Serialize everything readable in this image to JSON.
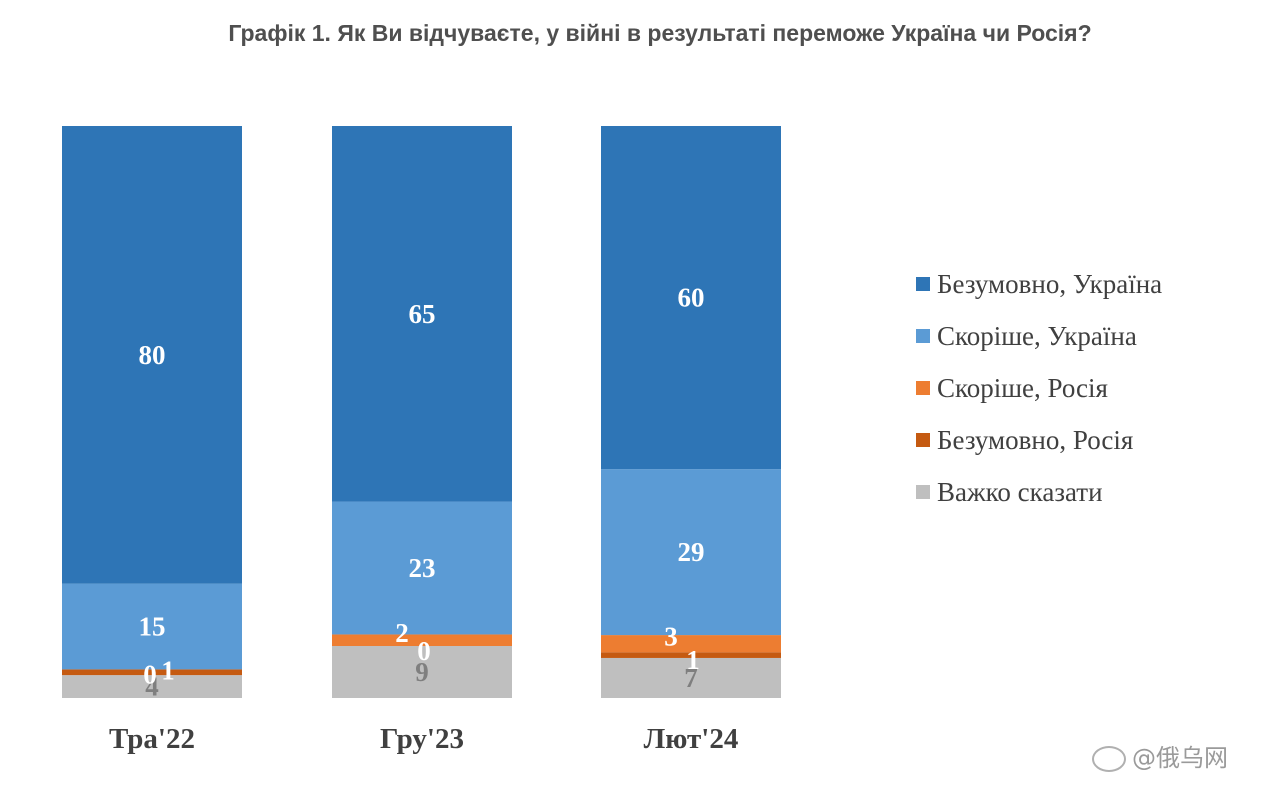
{
  "chart_data": {
    "type": "bar",
    "stacked": true,
    "title": "Графік 1. Як Ви відчуваєте, у війні в результаті переможе Україна чи Росія?",
    "categories": [
      "Тра'22",
      "Гру'23",
      "Лют'24"
    ],
    "ylim": [
      0,
      100
    ],
    "grid": false,
    "legend_position": "right",
    "series": [
      {
        "name": "Безумовно, Україна",
        "values": [
          80,
          65,
          60
        ],
        "color": "#2e75b6",
        "label_color": "#ffffff"
      },
      {
        "name": "Скоріше, Україна",
        "values": [
          15,
          23,
          29
        ],
        "color": "#5b9bd5",
        "label_color": "#ffffff"
      },
      {
        "name": "Скоріше, Росія",
        "values": [
          0,
          2,
          3
        ],
        "color": "#ed7d31",
        "label_color": "#ffffff"
      },
      {
        "name": "Безумовно, Росія",
        "values": [
          1,
          0,
          1
        ],
        "color": "#c55a11",
        "label_color": "#ffffff"
      },
      {
        "name": "Важко сказати",
        "values": [
          4,
          9,
          7
        ],
        "color": "#bfbfbf",
        "label_color": "#7f7f7f"
      }
    ]
  },
  "watermark": "@俄乌网"
}
